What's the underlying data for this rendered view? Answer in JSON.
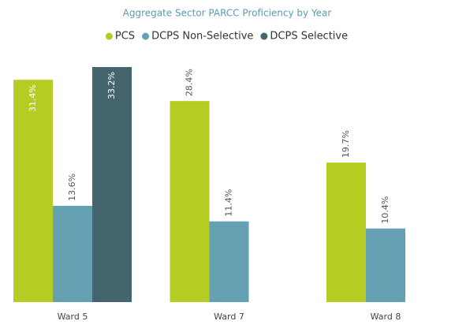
{
  "chart_data": {
    "type": "bar",
    "title": "Aggregate Sector PARCC Proficiency by Year",
    "categories": [
      "Ward 5",
      "Ward 7",
      "Ward 8"
    ],
    "series": [
      {
        "name": "PCS",
        "color": "#b5cc22",
        "values": [
          31.4,
          28.4,
          19.7
        ],
        "value_labels": [
          "31.4%",
          "28.4%",
          "19.7%"
        ]
      },
      {
        "name": "DCPS Non-Selective",
        "color": "#66a1b3",
        "values": [
          13.6,
          11.4,
          10.4
        ],
        "value_labels": [
          "13.6%",
          "11.4%",
          "10.4%"
        ]
      },
      {
        "name": "DCPS Selective",
        "color": "#44646e",
        "values": [
          33.2,
          null,
          null
        ],
        "value_labels": [
          "33.2%",
          null,
          null
        ]
      }
    ]
  }
}
